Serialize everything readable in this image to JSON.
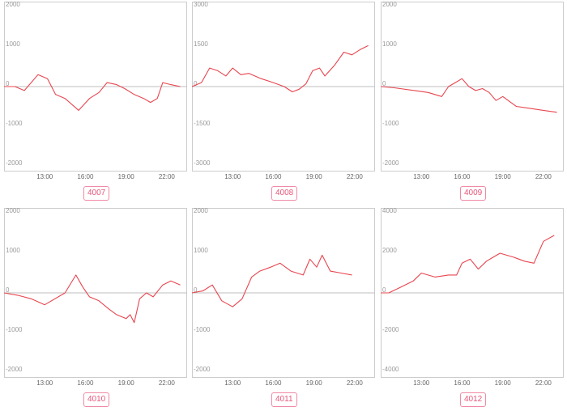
{
  "colors": {
    "line": "#e8454f",
    "frame": "#cccccc",
    "zero_line": "#bfbfbf",
    "badge": "#e8557a"
  },
  "chart_data": [
    {
      "type": "line",
      "label": "4007",
      "yticks": [
        "2000",
        "1000",
        "0",
        "-1000",
        "-2000"
      ],
      "ylim": [
        -2000,
        2000
      ],
      "xticks": [
        "13:00",
        "16:00",
        "19:00",
        "22:00"
      ],
      "xlim": [
        10,
        23.5
      ],
      "x": [
        10.0,
        10.8,
        11.5,
        12.5,
        13.2,
        13.8,
        14.5,
        15.5,
        16.3,
        17.0,
        17.6,
        18.3,
        18.9,
        19.6,
        20.3,
        20.8,
        21.3,
        21.7,
        22.3,
        23.0
      ],
      "y": [
        0,
        0,
        -100,
        300,
        200,
        -200,
        -300,
        -600,
        -300,
        -150,
        100,
        50,
        -50,
        -200,
        -300,
        -400,
        -300,
        100,
        50,
        0
      ]
    },
    {
      "type": "line",
      "label": "4008",
      "yticks": [
        "3000",
        "1500",
        "0",
        "-1500",
        "-3000"
      ],
      "ylim": [
        -3000,
        3000
      ],
      "xticks": [
        "13:00",
        "16:00",
        "19:00",
        "22:00"
      ],
      "xlim": [
        10,
        23.5
      ],
      "x": [
        10.0,
        10.7,
        11.3,
        11.9,
        12.5,
        13.0,
        13.6,
        14.2,
        15.1,
        16.0,
        16.8,
        17.4,
        17.9,
        18.4,
        18.9,
        19.4,
        19.8,
        20.5,
        21.2,
        21.8,
        22.4,
        23.0
      ],
      "y": [
        0,
        150,
        700,
        600,
        400,
        700,
        450,
        500,
        300,
        150,
        0,
        -200,
        -100,
        100,
        600,
        700,
        400,
        800,
        1300,
        1200,
        1400,
        1550
      ]
    },
    {
      "type": "line",
      "label": "4009",
      "yticks": [
        "2000",
        "1000",
        "0",
        "-1000",
        "-2000"
      ],
      "ylim": [
        -2000,
        2000
      ],
      "xticks": [
        "13:00",
        "16:00",
        "19:00",
        "22:00"
      ],
      "xlim": [
        10,
        23.5
      ],
      "x": [
        10.0,
        11.0,
        12.5,
        13.5,
        14.5,
        15.0,
        15.5,
        16.0,
        16.5,
        17.0,
        17.5,
        18.0,
        18.5,
        19.0,
        20.0,
        21.0,
        22.0,
        23.0
      ],
      "y": [
        0,
        -30,
        -100,
        -150,
        -250,
        0,
        100,
        200,
        0,
        -100,
        -50,
        -150,
        -350,
        -250,
        -500,
        -550,
        -600,
        -650
      ]
    },
    {
      "type": "line",
      "label": "4010",
      "yticks": [
        "2000",
        "1000",
        "0",
        "-1000",
        "-2000"
      ],
      "ylim": [
        -2000,
        2000
      ],
      "xticks": [
        "13:00",
        "16:00",
        "19:00",
        "22:00"
      ],
      "xlim": [
        10,
        23.5
      ],
      "x": [
        10.0,
        11.0,
        12.0,
        13.0,
        14.5,
        15.3,
        15.8,
        16.3,
        17.0,
        17.7,
        18.3,
        19.0,
        19.3,
        19.6,
        20.0,
        20.5,
        21.0,
        21.7,
        22.3,
        23.0
      ],
      "y": [
        0,
        -60,
        -150,
        -300,
        0,
        450,
        150,
        -100,
        -200,
        -400,
        -550,
        -650,
        -550,
        -750,
        -150,
        0,
        -100,
        200,
        300,
        200
      ]
    },
    {
      "type": "line",
      "label": "4011",
      "yticks": [
        "2000",
        "1000",
        "0",
        "-1000",
        "-2000"
      ],
      "ylim": [
        -2000,
        2000
      ],
      "xticks": [
        "13:00",
        "16:00",
        "19:00",
        "22:00"
      ],
      "xlim": [
        10,
        23.5
      ],
      "x": [
        10.0,
        10.8,
        11.5,
        12.2,
        13.0,
        13.7,
        14.4,
        15.0,
        15.8,
        16.5,
        17.3,
        18.2,
        18.7,
        19.2,
        19.6,
        20.2,
        21.0,
        21.8
      ],
      "y": [
        0,
        50,
        200,
        -200,
        -350,
        -150,
        400,
        550,
        650,
        750,
        550,
        450,
        850,
        650,
        950,
        550,
        500,
        450
      ]
    },
    {
      "type": "line",
      "label": "4012",
      "yticks": [
        "4000",
        "2000",
        "0",
        "-2000",
        "-4000"
      ],
      "ylim": [
        -4000,
        4000
      ],
      "xticks": [
        "13:00",
        "16:00",
        "19:00",
        "22:00"
      ],
      "xlim": [
        10,
        23.5
      ],
      "x": [
        10.0,
        10.6,
        11.5,
        12.4,
        13.0,
        14.0,
        15.0,
        15.6,
        16.0,
        16.6,
        17.2,
        17.8,
        18.3,
        18.8,
        19.8,
        20.6,
        21.3,
        22.0,
        22.8
      ],
      "y": [
        0,
        0,
        300,
        600,
        1000,
        800,
        900,
        900,
        1500,
        1700,
        1200,
        1600,
        1800,
        2000,
        1800,
        1600,
        1500,
        2600,
        2900
      ]
    }
  ]
}
